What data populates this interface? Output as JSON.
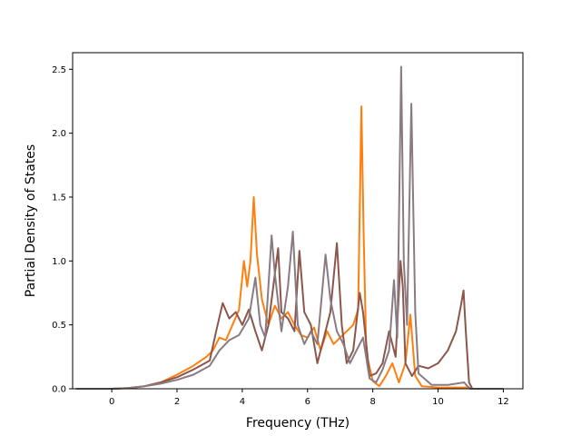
{
  "chart_data": {
    "type": "line",
    "title": "",
    "xlabel": "Frequency (THz)",
    "ylabel": "Partial Density of States",
    "xlim": [
      -1.2,
      12.6
    ],
    "ylim": [
      0,
      2.63
    ],
    "xticks": [
      0,
      2,
      4,
      6,
      8,
      10,
      12
    ],
    "yticks": [
      0.0,
      0.5,
      1.0,
      1.5,
      2.0,
      2.5
    ],
    "xtick_labels": [
      "0",
      "2",
      "4",
      "6",
      "8",
      "10",
      "12"
    ],
    "ytick_labels": [
      "0.0",
      "0.5",
      "1.0",
      "1.5",
      "2.0",
      "2.5"
    ],
    "grid": false,
    "legend": "none",
    "series": [
      {
        "color": "#ff7f0e",
        "points": [
          [
            -1.1,
            0
          ],
          [
            0,
            0
          ],
          [
            0.5,
            0.005
          ],
          [
            1,
            0.02
          ],
          [
            1.5,
            0.05
          ],
          [
            2,
            0.11
          ],
          [
            2.5,
            0.18
          ],
          [
            2.9,
            0.25
          ],
          [
            3.1,
            0.3
          ],
          [
            3.3,
            0.4
          ],
          [
            3.5,
            0.38
          ],
          [
            3.7,
            0.5
          ],
          [
            3.9,
            0.62
          ],
          [
            4.05,
            1.0
          ],
          [
            4.15,
            0.8
          ],
          [
            4.25,
            1.0
          ],
          [
            4.35,
            1.5
          ],
          [
            4.45,
            1.05
          ],
          [
            4.6,
            0.7
          ],
          [
            4.8,
            0.5
          ],
          [
            5.0,
            0.65
          ],
          [
            5.2,
            0.55
          ],
          [
            5.4,
            0.6
          ],
          [
            5.6,
            0.5
          ],
          [
            5.8,
            0.42
          ],
          [
            6.0,
            0.4
          ],
          [
            6.2,
            0.48
          ],
          [
            6.4,
            0.3
          ],
          [
            6.6,
            0.45
          ],
          [
            6.8,
            0.35
          ],
          [
            7.0,
            0.4
          ],
          [
            7.2,
            0.45
          ],
          [
            7.4,
            0.5
          ],
          [
            7.55,
            0.62
          ],
          [
            7.65,
            2.21
          ],
          [
            7.72,
            1.2
          ],
          [
            7.8,
            0.28
          ],
          [
            8.0,
            0.06
          ],
          [
            8.2,
            0.02
          ],
          [
            8.4,
            0.1
          ],
          [
            8.6,
            0.2
          ],
          [
            8.8,
            0.05
          ],
          [
            9.0,
            0.2
          ],
          [
            9.15,
            0.58
          ],
          [
            9.3,
            0.1
          ],
          [
            9.5,
            0.02
          ],
          [
            10,
            0.01
          ],
          [
            10.5,
            0.01
          ],
          [
            10.9,
            0.01
          ],
          [
            11,
            0
          ],
          [
            12,
            0
          ]
        ]
      },
      {
        "color": "#8c564b",
        "points": [
          [
            -1.1,
            0
          ],
          [
            0,
            0
          ],
          [
            0.5,
            0.005
          ],
          [
            1,
            0.02
          ],
          [
            1.5,
            0.05
          ],
          [
            2,
            0.09
          ],
          [
            2.5,
            0.15
          ],
          [
            3.0,
            0.22
          ],
          [
            3.2,
            0.45
          ],
          [
            3.4,
            0.67
          ],
          [
            3.6,
            0.55
          ],
          [
            3.8,
            0.6
          ],
          [
            4.0,
            0.5
          ],
          [
            4.2,
            0.62
          ],
          [
            4.4,
            0.45
          ],
          [
            4.6,
            0.3
          ],
          [
            4.8,
            0.5
          ],
          [
            5.0,
            0.9
          ],
          [
            5.1,
            1.1
          ],
          [
            5.2,
            0.6
          ],
          [
            5.4,
            0.55
          ],
          [
            5.6,
            0.45
          ],
          [
            5.75,
            1.08
          ],
          [
            5.9,
            0.6
          ],
          [
            6.1,
            0.5
          ],
          [
            6.3,
            0.2
          ],
          [
            6.5,
            0.4
          ],
          [
            6.7,
            0.6
          ],
          [
            6.9,
            1.14
          ],
          [
            7.05,
            0.5
          ],
          [
            7.2,
            0.2
          ],
          [
            7.4,
            0.3
          ],
          [
            7.6,
            0.75
          ],
          [
            7.7,
            0.6
          ],
          [
            7.9,
            0.1
          ],
          [
            8.1,
            0.12
          ],
          [
            8.3,
            0.2
          ],
          [
            8.5,
            0.45
          ],
          [
            8.7,
            0.25
          ],
          [
            8.85,
            1.0
          ],
          [
            8.92,
            0.8
          ],
          [
            9.0,
            0.2
          ],
          [
            9.2,
            0.1
          ],
          [
            9.4,
            0.18
          ],
          [
            9.7,
            0.16
          ],
          [
            10.0,
            0.2
          ],
          [
            10.3,
            0.3
          ],
          [
            10.55,
            0.45
          ],
          [
            10.7,
            0.65
          ],
          [
            10.78,
            0.77
          ],
          [
            10.85,
            0.45
          ],
          [
            10.95,
            0.05
          ],
          [
            11.05,
            0
          ],
          [
            12,
            0
          ]
        ]
      },
      {
        "color": "#8a7b82",
        "points": [
          [
            -1.1,
            0
          ],
          [
            0,
            0
          ],
          [
            0.5,
            0.005
          ],
          [
            1,
            0.02
          ],
          [
            1.5,
            0.04
          ],
          [
            2,
            0.07
          ],
          [
            2.5,
            0.11
          ],
          [
            3.0,
            0.18
          ],
          [
            3.3,
            0.3
          ],
          [
            3.6,
            0.38
          ],
          [
            3.9,
            0.42
          ],
          [
            4.2,
            0.55
          ],
          [
            4.4,
            0.87
          ],
          [
            4.55,
            0.5
          ],
          [
            4.7,
            0.4
          ],
          [
            4.9,
            1.2
          ],
          [
            5.0,
            0.9
          ],
          [
            5.2,
            0.45
          ],
          [
            5.4,
            0.8
          ],
          [
            5.55,
            1.23
          ],
          [
            5.7,
            0.5
          ],
          [
            5.9,
            0.35
          ],
          [
            6.1,
            0.45
          ],
          [
            6.3,
            0.35
          ],
          [
            6.55,
            1.05
          ],
          [
            6.7,
            0.7
          ],
          [
            6.9,
            0.45
          ],
          [
            7.1,
            0.35
          ],
          [
            7.3,
            0.2
          ],
          [
            7.5,
            0.3
          ],
          [
            7.7,
            0.4
          ],
          [
            7.9,
            0.08
          ],
          [
            8.1,
            0.05
          ],
          [
            8.3,
            0.15
          ],
          [
            8.5,
            0.3
          ],
          [
            8.65,
            0.85
          ],
          [
            8.75,
            0.4
          ],
          [
            8.87,
            2.52
          ],
          [
            8.95,
            1.0
          ],
          [
            9.05,
            0.5
          ],
          [
            9.18,
            2.23
          ],
          [
            9.3,
            0.6
          ],
          [
            9.4,
            0.12
          ],
          [
            9.8,
            0.03
          ],
          [
            10.3,
            0.03
          ],
          [
            10.8,
            0.05
          ],
          [
            10.9,
            0.02
          ],
          [
            11.0,
            0
          ],
          [
            12,
            0
          ]
        ]
      }
    ]
  }
}
